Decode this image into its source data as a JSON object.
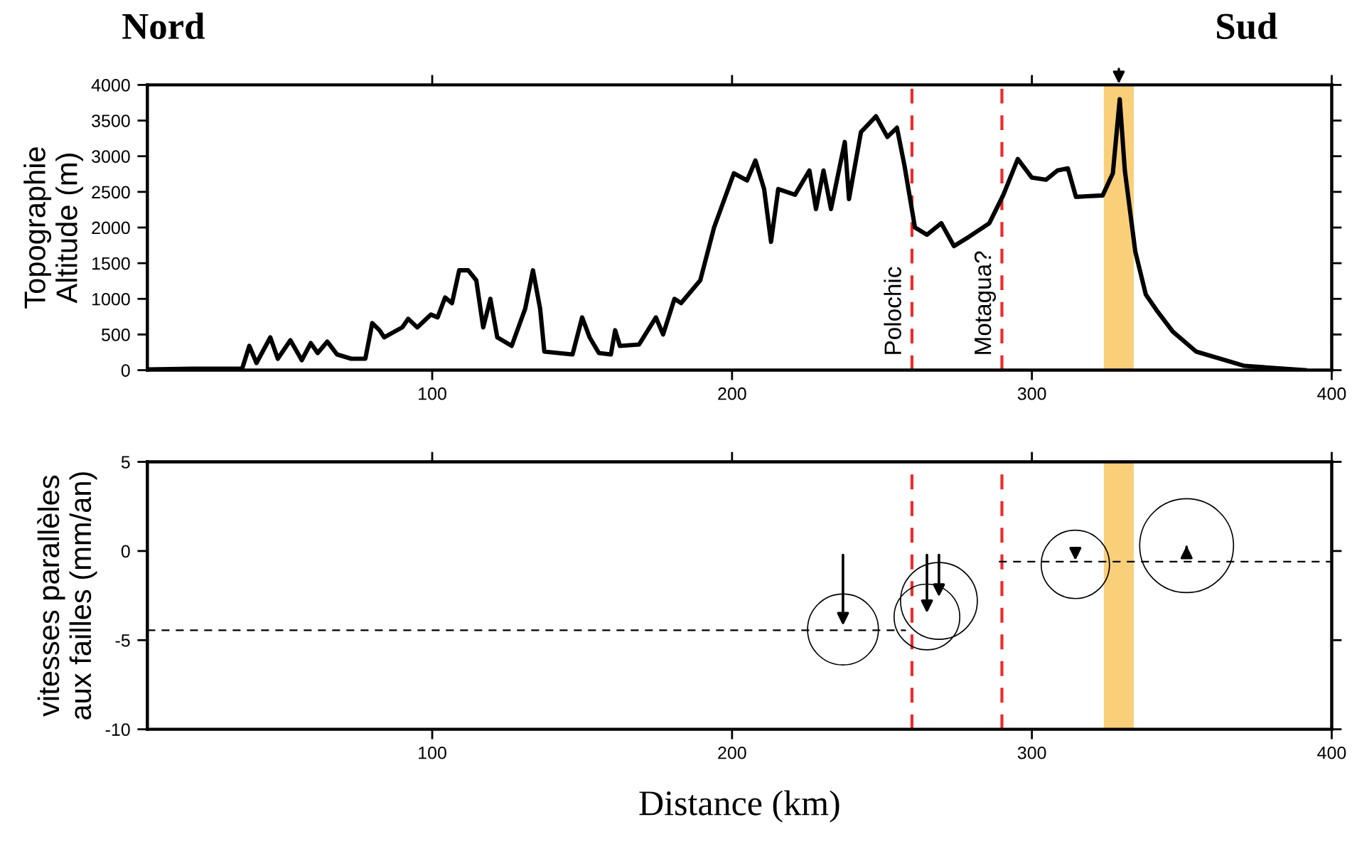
{
  "chart_data": [
    {
      "type": "line",
      "ylabel": "Topographie\nAltitude (m)",
      "annotations": [
        "Nord",
        "Sud"
      ],
      "color": "#000000",
      "x": [
        5,
        20,
        36.6,
        39,
        41.4,
        46,
        48.5,
        52.7,
        56.5,
        59.5,
        61.8,
        65,
        68.3,
        73,
        77.7,
        80,
        82.4,
        84,
        90,
        92,
        95,
        99.6,
        101.8,
        104.3,
        106.6,
        109,
        112,
        114.7,
        117,
        119.4,
        121.7,
        126.5,
        131,
        133.6,
        136,
        137.4,
        146.8,
        150,
        152.5,
        155.6,
        159.6,
        161,
        162.6,
        169,
        174.6,
        177,
        180.8,
        183,
        189.4,
        194,
        200.6,
        205,
        207.8,
        210.7,
        213,
        215.4,
        221,
        225.8,
        228,
        230.5,
        233,
        237.6,
        239,
        243,
        248,
        251.8,
        255,
        257.5,
        261,
        265,
        269.8,
        274,
        279,
        285.8,
        290.5,
        295.3,
        300,
        304.7,
        308.5,
        312,
        314.7,
        323.6,
        327,
        329.3,
        331,
        334.5,
        338,
        341.6,
        347,
        354.8,
        370.9,
        391
      ],
      "values": [
        10,
        20,
        20,
        340,
        100,
        460,
        160,
        420,
        140,
        380,
        240,
        400,
        220,
        160,
        160,
        660,
        560,
        460,
        600,
        720,
        600,
        780,
        740,
        1020,
        940,
        1400,
        1400,
        1260,
        600,
        1000,
        460,
        340,
        860,
        1400,
        860,
        260,
        220,
        740,
        460,
        240,
        220,
        560,
        340,
        360,
        740,
        500,
        1000,
        940,
        1260,
        2000,
        2760,
        2660,
        2940,
        2540,
        1800,
        2540,
        2460,
        2800,
        2260,
        2800,
        2260,
        3200,
        2400,
        3340,
        3560,
        3270,
        3400,
        2870,
        2000,
        1900,
        2060,
        1740,
        1870,
        2060,
        2460,
        2960,
        2700,
        2670,
        2800,
        2830,
        2430,
        2450,
        2760,
        3800,
        2800,
        1660,
        1060,
        840,
        540,
        260,
        60,
        0
      ],
      "xlim": [
        5,
        400
      ],
      "xticks": [
        100,
        200,
        300,
        400
      ],
      "ylim": [
        0,
        4000
      ],
      "yticks": [
        0,
        500,
        1000,
        1500,
        2000,
        2500,
        3000,
        3500,
        4000
      ],
      "ref_lines": [
        {
          "axis": "x",
          "value": 260,
          "label": "Polochic",
          "color": "#ee2a2a",
          "line_style": "dashed"
        },
        {
          "axis": "x",
          "value": 290,
          "label": "Motagua?",
          "color": "#ee2a2a",
          "line_style": "dashed"
        }
      ],
      "bands": [
        {
          "axis": "x",
          "from": 324,
          "to": 334,
          "color": "#f9cf79"
        }
      ]
    },
    {
      "type": "scatter",
      "xlabel": "Distance (km)",
      "ylabel": "vitesses parallèles\naux failles (mm/an)",
      "series": [
        {
          "type": "bubble",
          "color": "#000000",
          "x": [
            237,
            265,
            269,
            314.5,
            351.6
          ],
          "values": [
            -4.4,
            -3.7,
            -2.8,
            -0.75,
            0.3
          ],
          "sizes": [
            0.57,
            0.49,
            0.67,
            0.53,
            1
          ]
        },
        {
          "type": "line",
          "color": "#000000",
          "line_style": "dashed",
          "x": [
            5,
            258
          ],
          "values": [
            -4.45,
            -4.45
          ]
        },
        {
          "type": "line",
          "color": "#000000",
          "line_style": "dashed",
          "x": [
            289,
            400
          ],
          "values": [
            -0.6,
            -0.6
          ]
        }
      ],
      "xlim": [
        5,
        400
      ],
      "xticks": [
        100,
        200,
        300,
        400
      ],
      "ylim": [
        -10,
        5
      ],
      "yticks": [
        -10,
        -5,
        0,
        5
      ],
      "ref_lines": [
        {
          "axis": "x",
          "value": 260,
          "color": "#ee2a2a",
          "line_style": "dashed"
        },
        {
          "axis": "x",
          "value": 290,
          "color": "#ee2a2a",
          "line_style": "dashed"
        }
      ],
      "bands": [
        {
          "axis": "x",
          "from": 324,
          "to": 334,
          "color": "#f9cf79"
        }
      ]
    }
  ]
}
